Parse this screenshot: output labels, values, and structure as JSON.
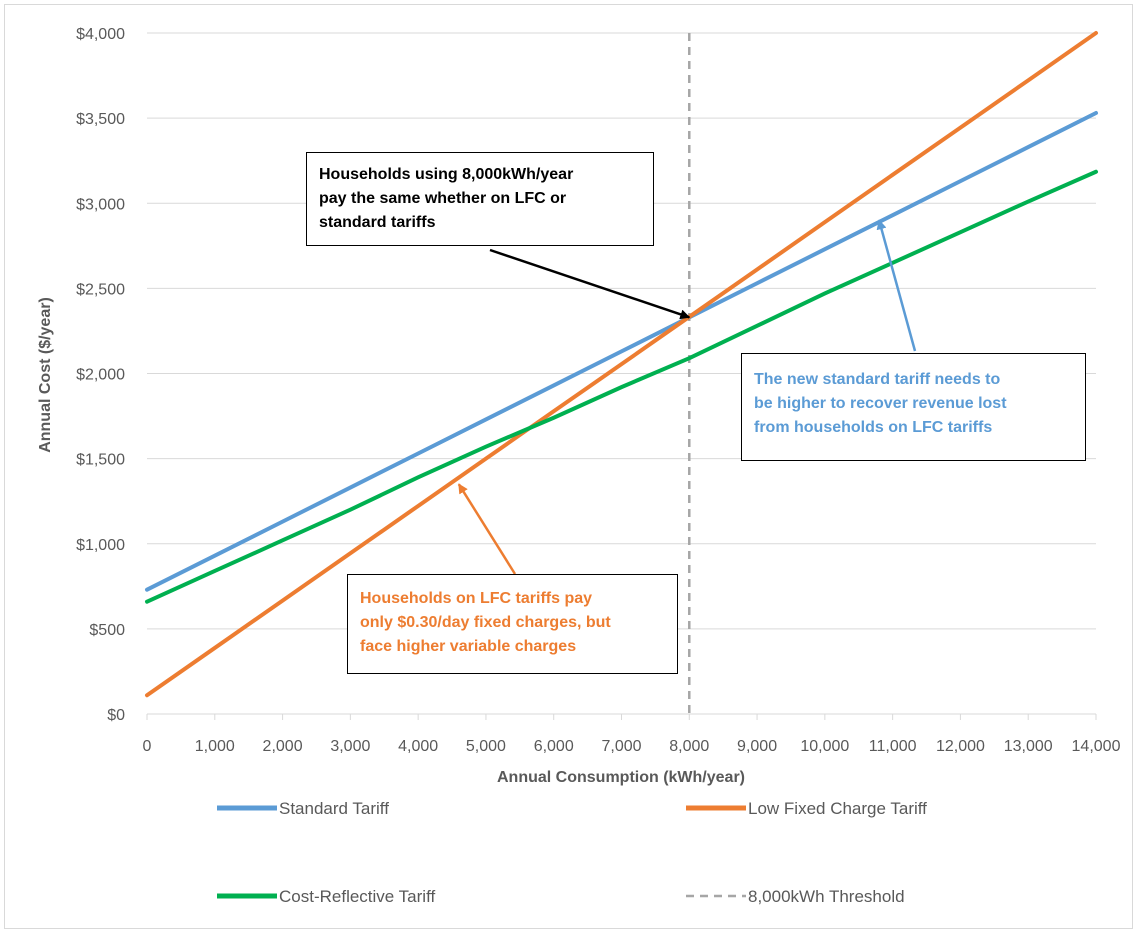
{
  "chart_data": {
    "type": "line",
    "xlabel": "Annual Consumption (kWh/year)",
    "ylabel": "Annual Cost ($/year)",
    "xlim": [
      0,
      14000
    ],
    "ylim": [
      0,
      4000
    ],
    "x_ticks": [
      "0",
      "1,000",
      "2,000",
      "3,000",
      "4,000",
      "5,000",
      "6,000",
      "7,000",
      "8,000",
      "9,000",
      "10,000",
      "11,000",
      "12,000",
      "13,000",
      "14,000"
    ],
    "y_ticks": [
      "$0",
      "$500",
      "$1,000",
      "$1,500",
      "$2,000",
      "$2,500",
      "$3,000",
      "$3,500",
      "$4,000"
    ],
    "grid": "horizontal",
    "legend_position": "bottom",
    "x": [
      0,
      1000,
      2000,
      3000,
      4000,
      5000,
      6000,
      7000,
      8000,
      9000,
      10000,
      11000,
      12000,
      13000,
      14000
    ],
    "series": [
      {
        "name": "Standard Tariff",
        "color": "#5b9bd5",
        "style": "solid",
        "values": [
          730,
          930,
          1130,
          1330,
          1530,
          1730,
          1930,
          2130,
          2330,
          2530,
          2730,
          2930,
          3130,
          3330,
          3530
        ]
      },
      {
        "name": "Low Fixed Charge Tariff",
        "color": "#ed7d31",
        "style": "solid",
        "values": [
          110,
          388,
          666,
          944,
          1222,
          1500,
          1778,
          2055,
          2333,
          2611,
          2889,
          3167,
          3444,
          3722,
          4000
        ]
      },
      {
        "name": "Cost-Reflective Tariff",
        "color": "#00b050",
        "style": "solid",
        "values": [
          660,
          840,
          1020,
          1200,
          1390,
          1570,
          1740,
          1920,
          2090,
          2280,
          2470,
          2650,
          2830,
          3010,
          3185
        ]
      }
    ],
    "vertical_line": {
      "name": "8,000kWh Threshold",
      "x": 8000,
      "color": "#a6a6a6",
      "style": "dashed"
    },
    "annotations": [
      {
        "lines": [
          "Households using 8,000kWh/year",
          "pay the same whether on LFC or",
          "standard  tariffs"
        ],
        "color": "#000000",
        "points_to": [
          8000,
          2330
        ]
      },
      {
        "lines": [
          "The new standard tariff needs to",
          "be higher to recover revenue lost",
          "from households on LFC tariffs"
        ],
        "color": "#5b9bd5",
        "points_to": [
          10800,
          2900
        ]
      },
      {
        "lines": [
          "Households on LFC tariffs pay",
          "only $0.30/day fixed charges, but",
          "face higher variable charges"
        ],
        "color": "#ed7d31",
        "points_to": [
          4600,
          1350
        ]
      }
    ]
  }
}
